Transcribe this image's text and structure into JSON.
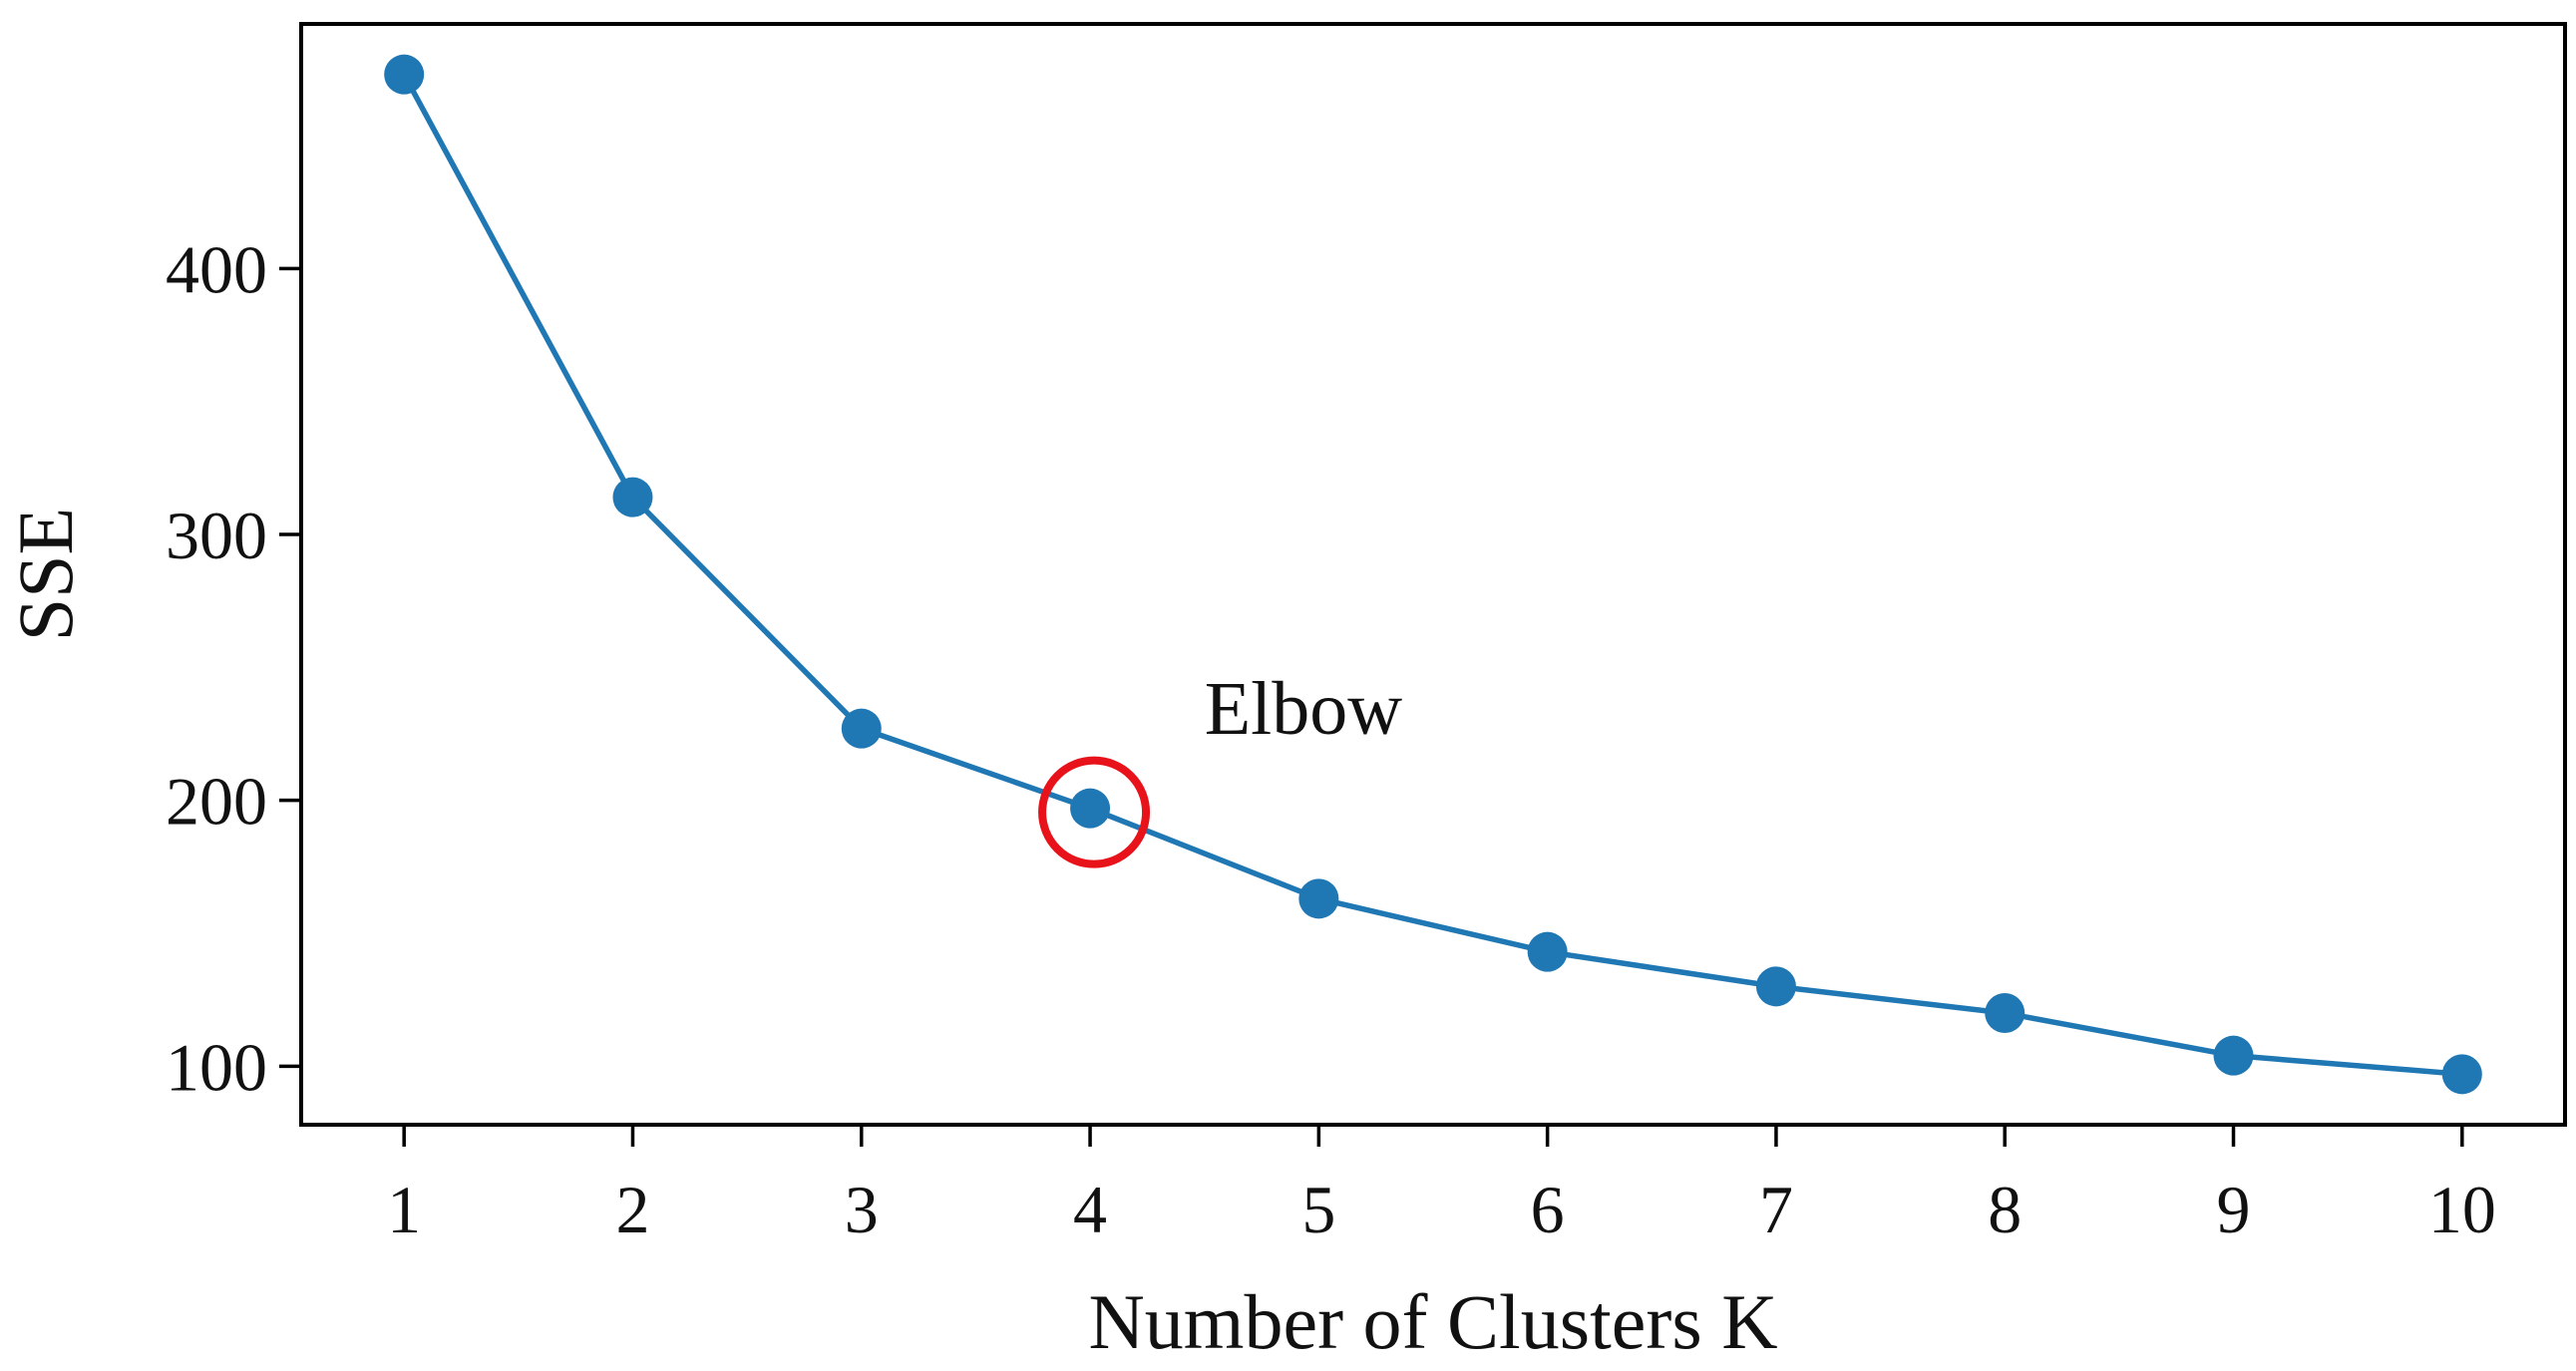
{
  "chart_data": {
    "type": "line",
    "title": "",
    "xlabel": "Number of Clusters K",
    "ylabel": "SSE",
    "x": [
      1,
      2,
      3,
      4,
      5,
      6,
      7,
      8,
      9,
      10
    ],
    "series": [
      {
        "values": [
          473,
          314,
          227,
          197,
          163,
          143,
          130,
          120,
          104,
          97
        ],
        "color": "#1f77b4",
        "marker": "circle"
      }
    ],
    "xlim": [
      0.55,
      10.45
    ],
    "ylim": [
      78,
      492
    ],
    "xticks": [
      "1",
      "2",
      "3",
      "4",
      "5",
      "6",
      "7",
      "8",
      "9",
      "10"
    ],
    "yticks": [
      {
        "value": 100,
        "label": "100"
      },
      {
        "value": 200,
        "label": "200"
      },
      {
        "value": 300,
        "label": "300"
      },
      {
        "value": 400,
        "label": "400"
      }
    ],
    "grid": false,
    "legend": "none",
    "annotations": [
      {
        "text": "Elbow",
        "x": 4.5,
        "y": 225,
        "target_x": 4,
        "target_y": 197,
        "circle_color": "#e8121b"
      }
    ]
  }
}
